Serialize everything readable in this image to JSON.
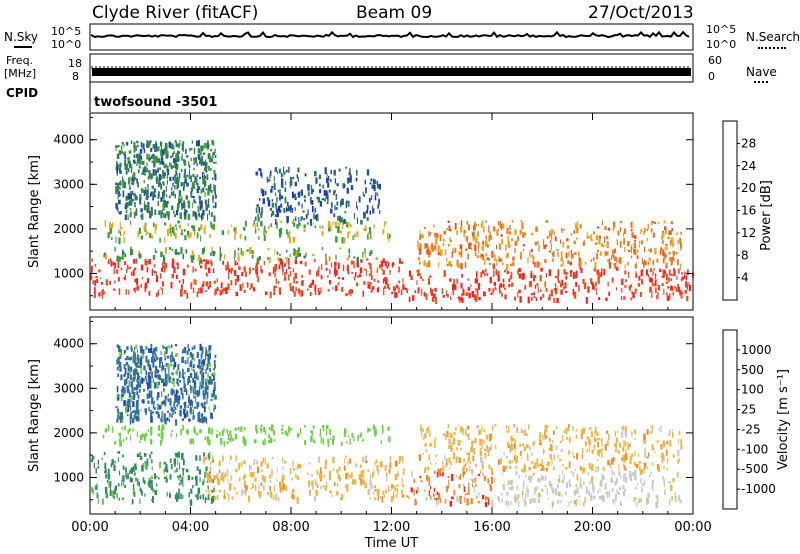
{
  "header": {
    "station": "Clyde River (fitACF)",
    "beam": "Beam 09",
    "date": "27/Oct/2013"
  },
  "status_panel": {
    "nsky_label": "N.Sky",
    "nsearch_label": "N.Search",
    "nsky_ticks": [
      "10^5",
      "10^0"
    ],
    "nsearch_ticks": [
      "10^5",
      "10^0"
    ],
    "freq_label_1": "Freq.",
    "freq_label_2": "[MHz]",
    "freq_ticks": [
      "18",
      "8"
    ],
    "nave_label": "Nave",
    "nave_ticks": [
      "60",
      "0"
    ],
    "cpid_label": "CPID",
    "cpid_value": "twofsound -3501"
  },
  "colors": {
    "power": [
      "#1e1eff",
      "#1e4aa0",
      "#2e7a55",
      "#3a9a3a",
      "#e8a818",
      "#f07818",
      "#f04d18",
      "#ff1e1e"
    ],
    "velocity": [
      "#2046b4",
      "#2e6e9a",
      "#2e8c5a",
      "#6ad040",
      "#c8c8c8",
      "#f0b440",
      "#f08a20",
      "#f05a18",
      "#ff1e1e"
    ]
  },
  "chart_data": [
    {
      "type": "heatmap",
      "name": "power",
      "xlabel": "Time UT",
      "ylabel": "Slant Range [km]",
      "xlim": [
        0,
        24
      ],
      "ylim": [
        180,
        4600
      ],
      "x_ticks": [
        "00:00",
        "04:00",
        "08:00",
        "12:00",
        "16:00",
        "20:00",
        "00:00"
      ],
      "y_ticks": [
        "1000",
        "2000",
        "3000",
        "4000"
      ],
      "colorbar_label": "Power [dB]",
      "colorbar_ticks": [
        "4",
        "8",
        "12",
        "16",
        "20",
        "24",
        "28"
      ],
      "colorbar_range": [
        0,
        32
      ],
      "regions": [
        {
          "t0": 0.0,
          "t1": 12.5,
          "r0": 550,
          "r1": 1350,
          "level": 28
        },
        {
          "t0": 12.5,
          "t1": 24.0,
          "r0": 450,
          "r1": 1150,
          "level": 28
        },
        {
          "t0": 0.5,
          "t1": 11.5,
          "r0": 1350,
          "r1": 1600,
          "level": 14
        },
        {
          "t0": 13.0,
          "t1": 23.5,
          "r0": 1200,
          "r1": 2200,
          "level": 22
        },
        {
          "t0": 0.5,
          "t1": 12.0,
          "r0": 1800,
          "r1": 2200,
          "level": 16
        },
        {
          "t0": 6.5,
          "t1": 11.5,
          "r0": 2200,
          "r1": 3400,
          "level": 7
        },
        {
          "t0": 1.0,
          "t1": 5.0,
          "r0": 2300,
          "r1": 4000,
          "level": 10
        }
      ]
    },
    {
      "type": "heatmap",
      "name": "velocity",
      "xlabel": "Time UT",
      "ylabel": "Slant Range [km]",
      "xlim": [
        0,
        24
      ],
      "ylim": [
        180,
        4600
      ],
      "x_ticks": [
        "00:00",
        "04:00",
        "08:00",
        "12:00",
        "16:00",
        "20:00",
        "00:00"
      ],
      "y_ticks": [
        "1000",
        "2000",
        "3000",
        "4000"
      ],
      "colorbar_label": "Velocity [m s⁻¹]",
      "colorbar_ticks": [
        "1000",
        "500",
        "100",
        "25",
        "-25",
        "-100",
        "-500",
        "-1000"
      ],
      "regions": [
        {
          "t0": 0.0,
          "t1": 5.0,
          "r0": 500,
          "r1": 1600,
          "level": 100
        },
        {
          "t0": 4.5,
          "t1": 12.5,
          "r0": 550,
          "r1": 1500,
          "level": -100
        },
        {
          "t0": 12.5,
          "t1": 16.0,
          "r0": 450,
          "r1": 1200,
          "level": -500
        },
        {
          "t0": 16.0,
          "t1": 23.5,
          "r0": 450,
          "r1": 1200,
          "level": -25
        },
        {
          "t0": 13.0,
          "t1": 23.5,
          "r0": 1200,
          "r1": 2200,
          "level": -100
        },
        {
          "t0": 0.5,
          "t1": 12.0,
          "r0": 1800,
          "r1": 2200,
          "level": 25
        },
        {
          "t0": 1.0,
          "t1": 5.0,
          "r0": 2300,
          "r1": 4000,
          "level": 500
        }
      ]
    }
  ]
}
